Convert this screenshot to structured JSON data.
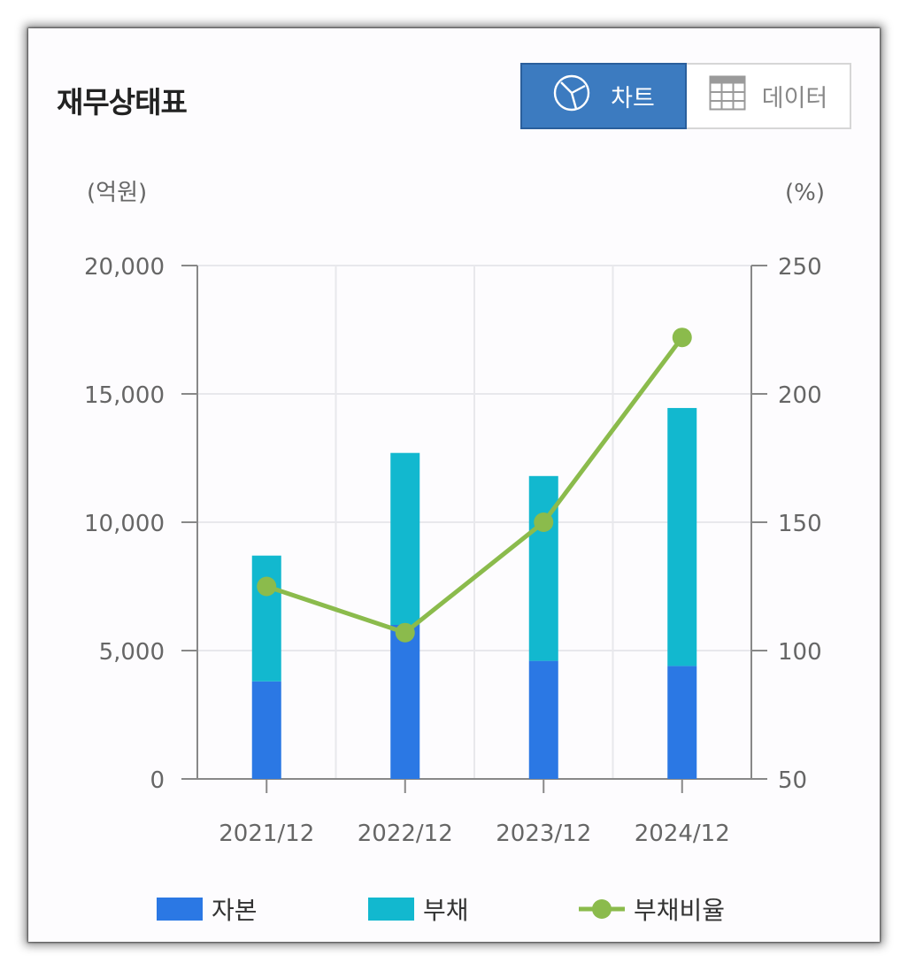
{
  "title": "재무상태표",
  "toggle": {
    "chart_label": "차트",
    "data_label": "데이터",
    "chart_icon": "pie-chart-icon",
    "data_icon": "table-grid-icon",
    "active": "chart"
  },
  "colors": {
    "equity": "#2b78e4",
    "liability": "#12b8cf",
    "ratio": "#8bbb4c",
    "axis": "#888888",
    "grid": "#e8e8ec",
    "tick_text": "#666666"
  },
  "chart_data": {
    "type": "bar",
    "stacked": true,
    "categories": [
      "2021/12",
      "2022/12",
      "2023/12",
      "2024/12"
    ],
    "series": [
      {
        "name": "자본",
        "values": [
          3800,
          6000,
          4600,
          4400
        ],
        "axis": "left"
      },
      {
        "name": "부채",
        "values": [
          4900,
          6700,
          7200,
          10050
        ],
        "axis": "left"
      },
      {
        "name": "부채비율",
        "type": "line",
        "values": [
          125,
          107,
          150,
          222
        ],
        "axis": "right"
      }
    ],
    "left_axis": {
      "unit_label": "(억원)",
      "ylim": [
        0,
        20000
      ],
      "ticks": [
        0,
        5000,
        10000,
        15000,
        20000
      ],
      "tick_labels": [
        "0",
        "5,000",
        "10,000",
        "15,000",
        "20,000"
      ]
    },
    "right_axis": {
      "unit_label": "(%)",
      "ylim": [
        50,
        250
      ],
      "ticks": [
        50,
        100,
        150,
        200,
        250
      ],
      "tick_labels": [
        "50",
        "100",
        "150",
        "200",
        "250"
      ]
    },
    "grid": true,
    "legend_position": "bottom"
  }
}
